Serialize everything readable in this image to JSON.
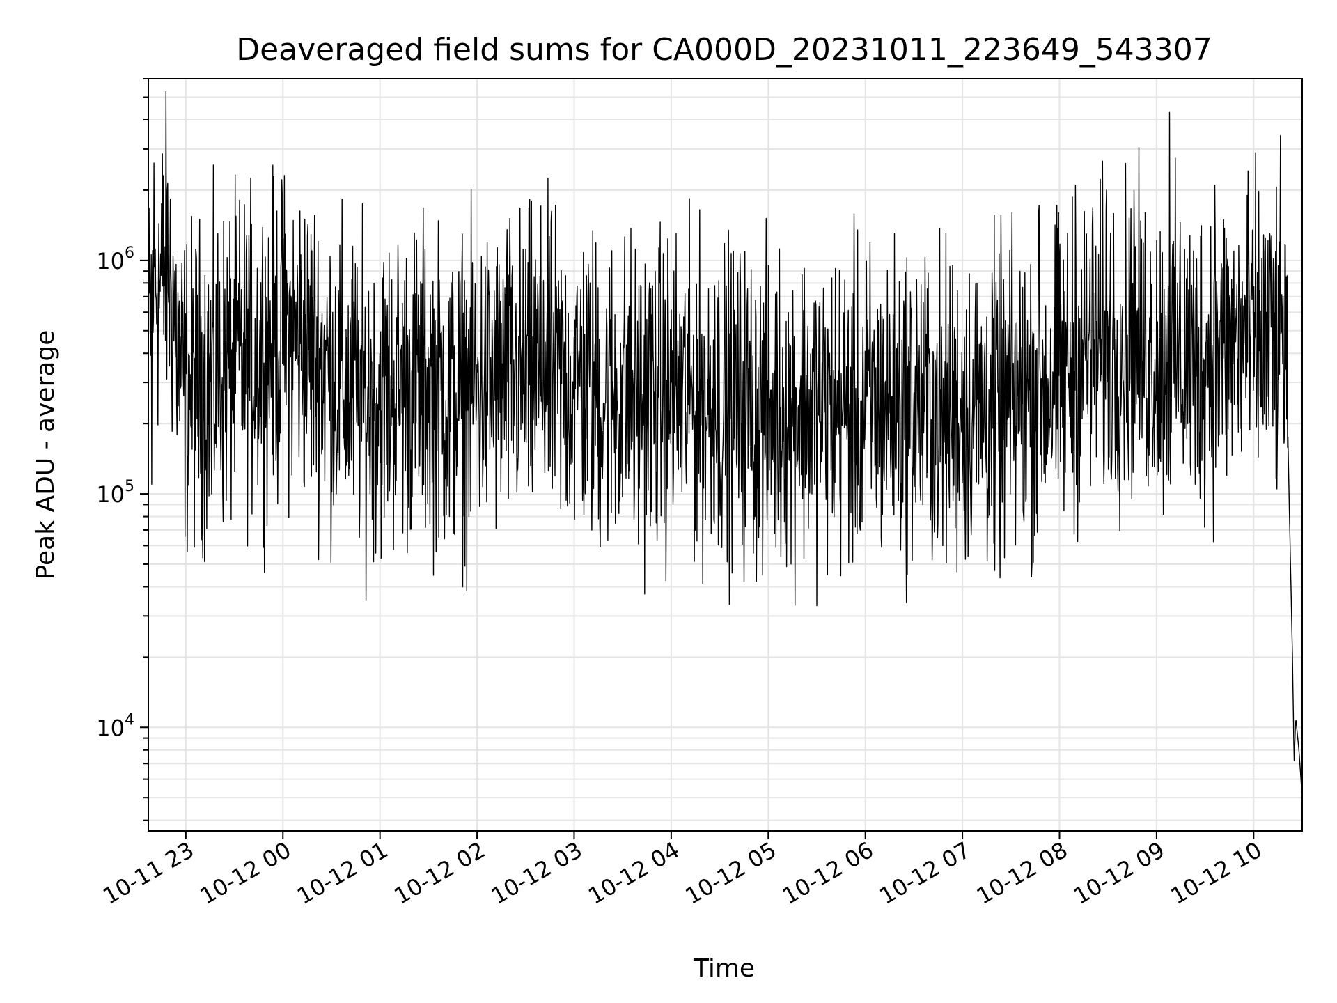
{
  "chart_data": {
    "type": "line",
    "title": "Deaveraged field sums for CA000D_20231011_223649_543307",
    "xlabel": "Time",
    "ylabel": "Peak ADU - average",
    "yscale": "log",
    "ylim": [
      3600,
      6000000
    ],
    "xlim": [
      "2023-10-11 22:36:49",
      "2023-10-12 10:30:00"
    ],
    "grid": true,
    "line_color": "#000000",
    "x_ticks": [
      {
        "value": "2023-10-11 23:00",
        "label": "10-11 23"
      },
      {
        "value": "2023-10-12 00:00",
        "label": "10-12 00"
      },
      {
        "value": "2023-10-12 01:00",
        "label": "10-12 01"
      },
      {
        "value": "2023-10-12 02:00",
        "label": "10-12 02"
      },
      {
        "value": "2023-10-12 03:00",
        "label": "10-12 03"
      },
      {
        "value": "2023-10-12 04:00",
        "label": "10-12 04"
      },
      {
        "value": "2023-10-12 05:00",
        "label": "10-12 05"
      },
      {
        "value": "2023-10-12 06:00",
        "label": "10-12 06"
      },
      {
        "value": "2023-10-12 07:00",
        "label": "10-12 07"
      },
      {
        "value": "2023-10-12 08:00",
        "label": "10-12 08"
      },
      {
        "value": "2023-10-12 09:00",
        "label": "10-12 09"
      },
      {
        "value": "2023-10-12 10:00",
        "label": "10-12 10"
      }
    ],
    "y_ticks": [
      {
        "value": 10000,
        "base": "10",
        "exp": "4"
      },
      {
        "value": 100000,
        "base": "10",
        "exp": "5"
      },
      {
        "value": 1000000,
        "base": "10",
        "exp": "6"
      }
    ],
    "series": [
      {
        "points": [
          [
            "2023-10-11 22:37",
            420000
          ],
          [
            "2023-10-11 22:40",
            900000
          ],
          [
            "2023-10-11 22:44",
            800000
          ],
          [
            "2023-10-11 22:48",
            950000
          ],
          [
            "2023-10-11 22:52",
            700000
          ],
          [
            "2023-10-11 22:56",
            330000
          ],
          [
            "2023-10-11 23:00",
            280000
          ],
          [
            "2023-10-11 23:10",
            300000
          ],
          [
            "2023-10-11 23:20",
            330000
          ],
          [
            "2023-10-11 23:30",
            360000
          ],
          [
            "2023-10-11 23:40",
            390000
          ],
          [
            "2023-10-11 23:50",
            420000
          ],
          [
            "2023-10-12 00:00",
            460000
          ],
          [
            "2023-10-12 00:10",
            470000
          ],
          [
            "2023-10-12 00:20",
            400000
          ],
          [
            "2023-10-12 00:30",
            330000
          ],
          [
            "2023-10-12 00:40",
            280000
          ],
          [
            "2023-10-12 00:50",
            260000
          ],
          [
            "2023-10-12 01:00",
            270000
          ],
          [
            "2023-10-12 01:15",
            290000
          ],
          [
            "2023-10-12 01:30",
            300000
          ],
          [
            "2023-10-12 01:45",
            250000
          ],
          [
            "2023-10-12 02:00",
            280000
          ],
          [
            "2023-10-12 02:20",
            310000
          ],
          [
            "2023-10-12 02:40",
            330000
          ],
          [
            "2023-10-12 03:00",
            290000
          ],
          [
            "2023-10-12 03:20",
            270000
          ],
          [
            "2023-10-12 03:40",
            260000
          ],
          [
            "2023-10-12 04:00",
            270000
          ],
          [
            "2023-10-12 04:20",
            250000
          ],
          [
            "2023-10-12 04:40",
            240000
          ],
          [
            "2023-10-12 05:00",
            220000
          ],
          [
            "2023-10-12 05:20",
            240000
          ],
          [
            "2023-10-12 05:40",
            230000
          ],
          [
            "2023-10-12 06:00",
            230000
          ],
          [
            "2023-10-12 06:20",
            240000
          ],
          [
            "2023-10-12 06:40",
            240000
          ],
          [
            "2023-10-12 07:00",
            230000
          ],
          [
            "2023-10-12 07:20",
            240000
          ],
          [
            "2023-10-12 07:40",
            260000
          ],
          [
            "2023-10-12 08:00",
            310000
          ],
          [
            "2023-10-12 08:20",
            420000
          ],
          [
            "2023-10-12 08:40",
            450000
          ],
          [
            "2023-10-12 09:00",
            400000
          ],
          [
            "2023-10-12 09:20",
            380000
          ],
          [
            "2023-10-12 09:40",
            430000
          ],
          [
            "2023-10-12 10:00",
            450000
          ],
          [
            "2023-10-12 10:15",
            440000
          ],
          [
            "2023-10-12 10:20",
            500000
          ],
          [
            "2023-10-12 10:22",
            90000
          ],
          [
            "2023-10-12 10:24",
            20000
          ],
          [
            "2023-10-12 10:25",
            7000
          ],
          [
            "2023-10-12 10:26",
            11000
          ],
          [
            "2023-10-12 10:28",
            8000
          ],
          [
            "2023-10-12 10:30",
            5000
          ]
        ],
        "spikes": [
          [
            "2023-10-11 22:45",
            1750000
          ],
          [
            "2023-10-11 22:39",
            110000
          ],
          [
            "2023-10-11 23:16",
            100000
          ],
          [
            "2023-10-12 00:00",
            1250000
          ],
          [
            "2023-10-12 00:18",
            1100000
          ],
          [
            "2023-10-12 00:30",
            110000
          ],
          [
            "2023-10-12 01:22",
            720000
          ],
          [
            "2023-10-12 01:43",
            80000
          ],
          [
            "2023-10-12 02:41",
            820000
          ],
          [
            "2023-10-12 03:04",
            750000
          ],
          [
            "2023-10-12 03:16",
            73000
          ],
          [
            "2023-10-12 03:37",
            78000
          ],
          [
            "2023-10-12 04:27",
            780000
          ],
          [
            "2023-10-12 04:52",
            80000
          ],
          [
            "2023-10-12 05:10",
            76000
          ],
          [
            "2023-10-12 05:57",
            70000
          ],
          [
            "2023-10-12 06:43",
            73000
          ],
          [
            "2023-10-12 06:48",
            60000
          ],
          [
            "2023-10-12 07:20",
            47000
          ],
          [
            "2023-10-12 07:47",
            1600000
          ],
          [
            "2023-10-12 08:10",
            2100000
          ],
          [
            "2023-10-12 08:29",
            2000000
          ],
          [
            "2023-10-12 08:46",
            2000000
          ],
          [
            "2023-10-12 09:08",
            4300000
          ],
          [
            "2023-10-12 09:24",
            110000
          ],
          [
            "2023-10-12 09:36",
            2100000
          ],
          [
            "2023-10-12 09:56",
            1900000
          ],
          [
            "2023-10-12 10:10",
            1300000
          ],
          [
            "2023-10-12 10:20",
            850000
          ]
        ]
      }
    ]
  }
}
